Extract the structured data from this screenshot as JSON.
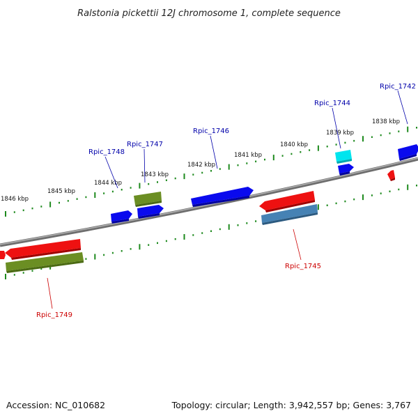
{
  "title": "Ralstonia pickettii 12J chromosome 1, complete sequence",
  "footer": {
    "accession": "Accession: NC_010682",
    "summary": "Topology: circular; Length: 3,942,557 bp; Genes: 3,767"
  },
  "scale_ticks": [
    "1838 kbp",
    "1839 kbp",
    "1840 kbp",
    "1841 kbp",
    "1842 kbp",
    "1843 kbp",
    "1844 kbp",
    "1845 kbp",
    "1846 kbp"
  ],
  "gene_labels": [
    "Rpic_1742",
    "Rpic_1744",
    "Rpic_1746",
    "Rpic_1747",
    "Rpic_1748",
    "Rpic_1745",
    "Rpic_1749"
  ],
  "colors": {
    "backbone": "#8c8c8c",
    "tick_green": "#1e8a1e",
    "forward_label": "#0000aa",
    "reverse_label": "#cc0000",
    "gene_blue": "#0a0aee",
    "gene_red": "#ee1111",
    "gene_olive": "#6b8e23",
    "gene_steelblue": "#4682b4",
    "gene_cyan": "#00e5ee"
  }
}
